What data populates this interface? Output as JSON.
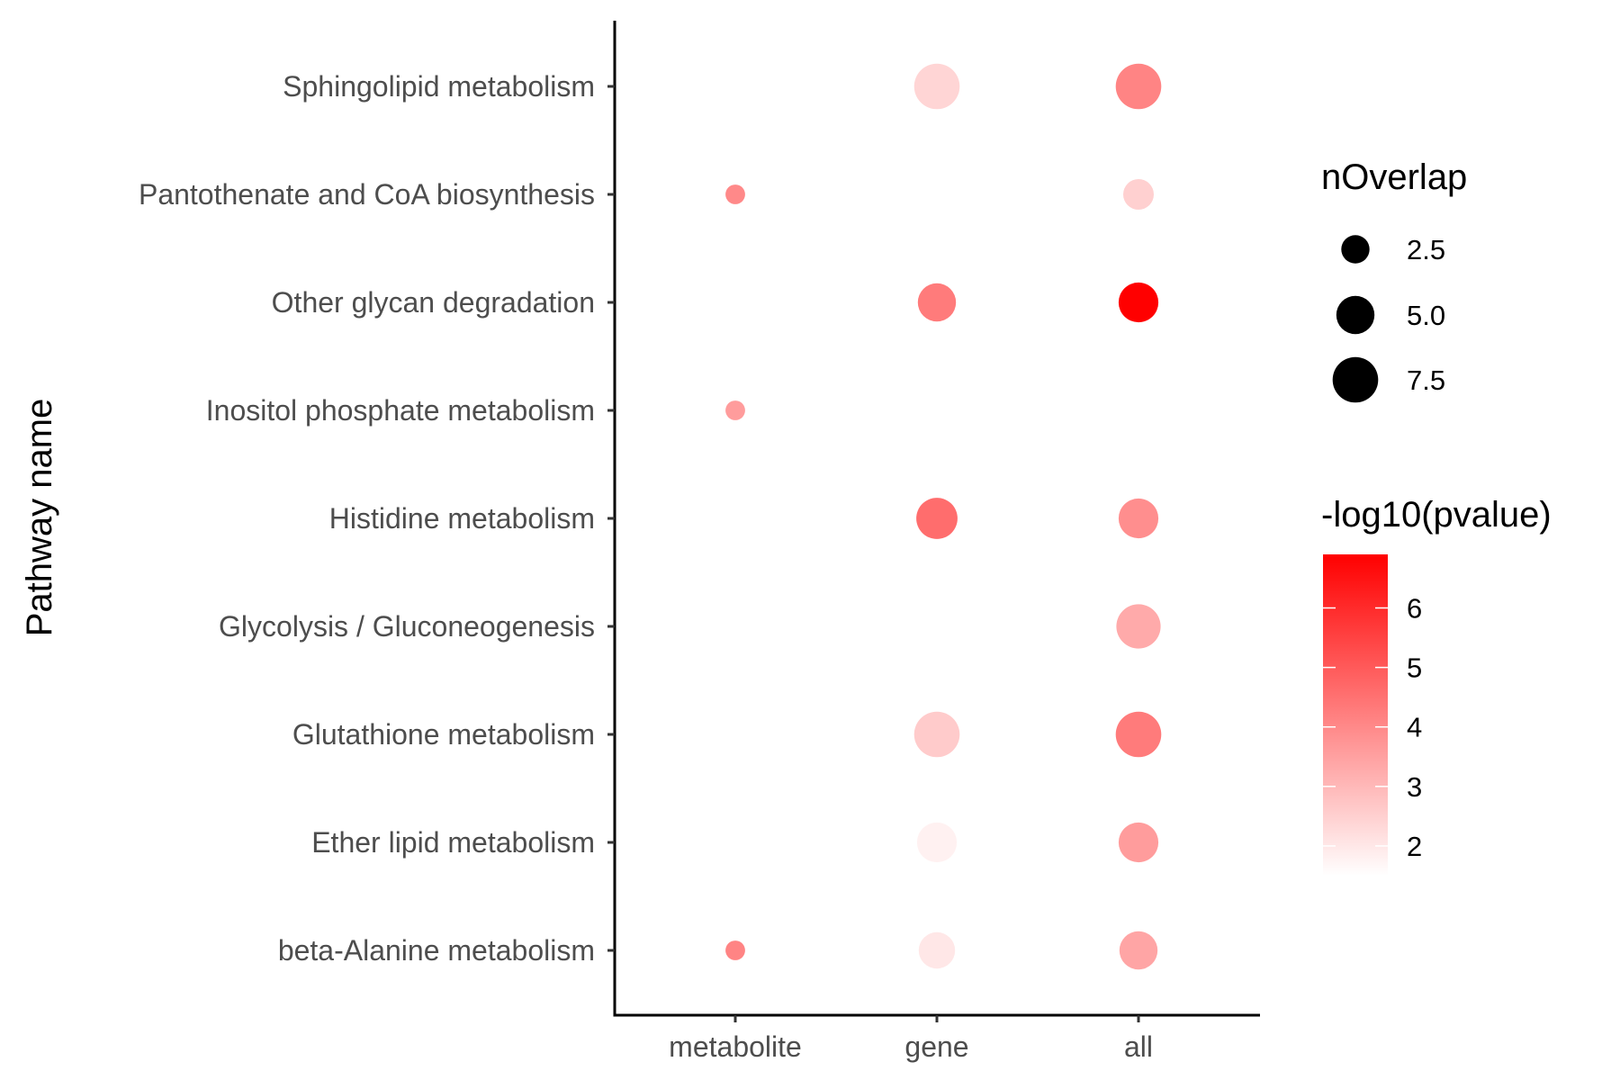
{
  "chart_data": {
    "type": "scatter",
    "subtype": "dot-plot",
    "ylabel": "Pathway name",
    "xlabel": "",
    "x_categories": [
      "metabolite",
      "gene",
      "all"
    ],
    "y_categories": [
      "Sphingolipid metabolism",
      "Pantothenate and CoA biosynthesis",
      "Other glycan degradation",
      "Inositol phosphate metabolism",
      "Histidine metabolism",
      "Glycolysis / Gluconeogenesis",
      "Glutathione metabolism",
      "Ether lipid metabolism",
      "beta-Alanine metabolism"
    ],
    "points": [
      {
        "y": "Sphingolipid metabolism",
        "x": "gene",
        "nOverlap": 7.5,
        "neg_log10_pvalue": 2.4
      },
      {
        "y": "Sphingolipid metabolism",
        "x": "all",
        "nOverlap": 7.5,
        "neg_log10_pvalue": 4.1
      },
      {
        "y": "Pantothenate and CoA biosynthesis",
        "x": "metabolite",
        "nOverlap": 1,
        "neg_log10_pvalue": 4.0
      },
      {
        "y": "Pantothenate and CoA biosynthesis",
        "x": "all",
        "nOverlap": 3,
        "neg_log10_pvalue": 2.5
      },
      {
        "y": "Other glycan degradation",
        "x": "gene",
        "nOverlap": 5,
        "neg_log10_pvalue": 4.3
      },
      {
        "y": "Other glycan degradation",
        "x": "all",
        "nOverlap": 5.5,
        "neg_log10_pvalue": 6.9
      },
      {
        "y": "Inositol phosphate metabolism",
        "x": "metabolite",
        "nOverlap": 1,
        "neg_log10_pvalue": 3.6
      },
      {
        "y": "Histidine metabolism",
        "x": "gene",
        "nOverlap": 6,
        "neg_log10_pvalue": 4.6
      },
      {
        "y": "Histidine metabolism",
        "x": "all",
        "nOverlap": 5.5,
        "neg_log10_pvalue": 3.9
      },
      {
        "y": "Glycolysis / Gluconeogenesis",
        "x": "all",
        "nOverlap": 7,
        "neg_log10_pvalue": 3.3
      },
      {
        "y": "Glutathione metabolism",
        "x": "gene",
        "nOverlap": 7.5,
        "neg_log10_pvalue": 2.6
      },
      {
        "y": "Glutathione metabolism",
        "x": "all",
        "nOverlap": 7.5,
        "neg_log10_pvalue": 4.3
      },
      {
        "y": "Ether lipid metabolism",
        "x": "gene",
        "nOverlap": 5.5,
        "neg_log10_pvalue": 1.8
      },
      {
        "y": "Ether lipid metabolism",
        "x": "all",
        "nOverlap": 5.5,
        "neg_log10_pvalue": 3.6
      },
      {
        "y": "beta-Alanine metabolism",
        "x": "metabolite",
        "nOverlap": 1,
        "neg_log10_pvalue": 4.1
      },
      {
        "y": "beta-Alanine metabolism",
        "x": "gene",
        "nOverlap": 4.5,
        "neg_log10_pvalue": 2.0
      },
      {
        "y": "beta-Alanine metabolism",
        "x": "all",
        "nOverlap": 5,
        "neg_log10_pvalue": 3.4
      }
    ],
    "size_legend": {
      "title": "nOverlap",
      "breaks": [
        2.5,
        5.0,
        7.5
      ],
      "labels": [
        "2.5",
        "5.0",
        "7.5"
      ]
    },
    "color_legend": {
      "title": "-log10(pvalue)",
      "range": [
        1.5,
        6.9
      ],
      "breaks": [
        2,
        3,
        4,
        5,
        6
      ],
      "labels": [
        "2",
        "3",
        "4",
        "5",
        "6"
      ],
      "low_color": "#ffffff",
      "high_color": "#ff0000"
    },
    "grid": false
  }
}
